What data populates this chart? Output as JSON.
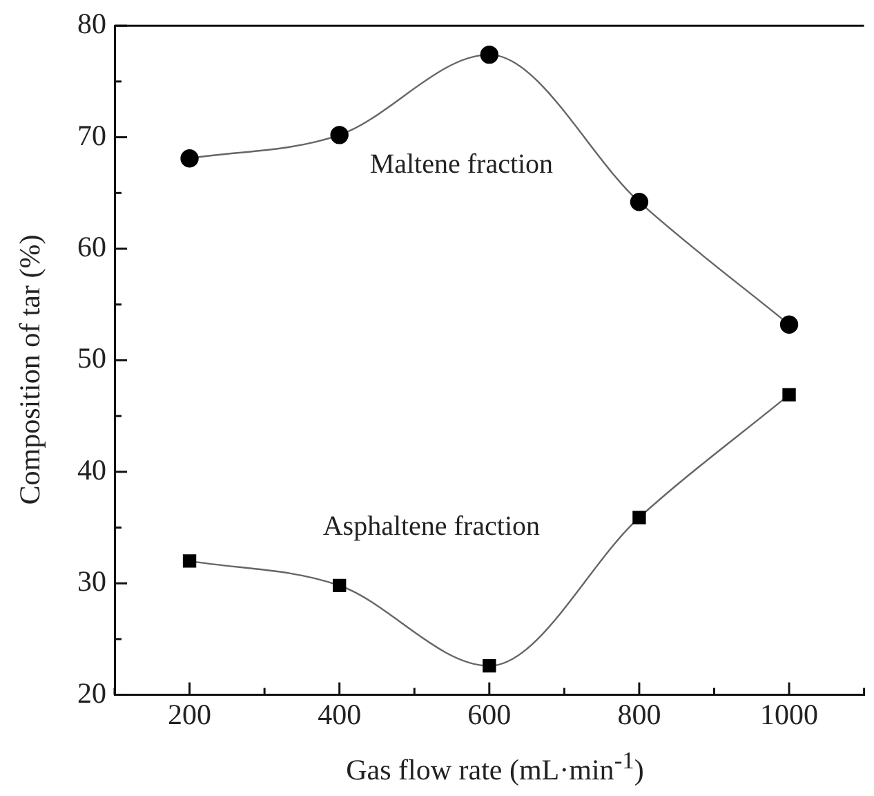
{
  "chart_data": {
    "type": "line",
    "xlabel": "Gas flow rate (mL·min$^{-1}$)",
    "ylabel": "Composition of tar (%)",
    "x": [
      200,
      400,
      600,
      800,
      1000
    ],
    "series": [
      {
        "name": "Maltene fraction",
        "color": "#000000",
        "marker": "circle",
        "values": [
          68.1,
          70.2,
          77.4,
          64.2,
          53.2
        ]
      },
      {
        "name": "Asphaltene fraction",
        "color": "#000000",
        "marker": "square",
        "values": [
          32,
          29.8,
          22.6,
          35.9,
          46.9
        ]
      }
    ],
    "xlim": [
      100,
      1100
    ],
    "xticks": [
      {
        "value": 100,
        "label": null
      },
      200,
      {
        "value": 300,
        "label": null
      },
      400,
      {
        "value": 500,
        "label": null
      },
      600,
      {
        "value": 700,
        "label": null
      },
      800,
      {
        "value": 900,
        "label": null
      },
      1000,
      {
        "value": 1100,
        "label": null
      }
    ],
    "ylim": [
      20,
      80
    ],
    "yticks": [
      20,
      {
        "value": 25,
        "label": null
      },
      30,
      {
        "value": 35,
        "label": null
      },
      40,
      {
        "value": 45,
        "label": null
      },
      50,
      {
        "value": 55,
        "label": null
      },
      60,
      {
        "value": 65,
        "label": null
      },
      70,
      {
        "value": 75,
        "label": null
      },
      80
    ],
    "grid": false,
    "legend": false,
    "line_style": "solid"
  }
}
